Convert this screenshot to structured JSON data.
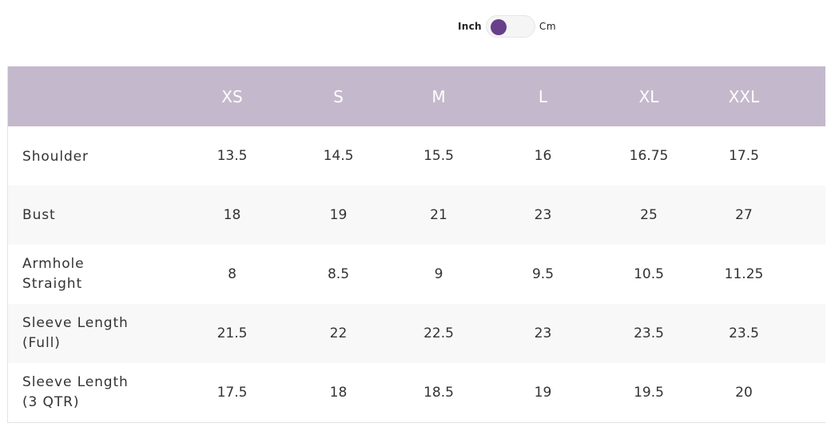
{
  "unit_toggle": {
    "left_label": "Inch",
    "right_label": "Cm",
    "selected": "Inch"
  },
  "table": {
    "header": [
      "",
      "XS",
      "S",
      "M",
      "L",
      "XL",
      "XXL"
    ],
    "rows": [
      {
        "label_lines": [
          "Shoulder"
        ],
        "values": [
          "13.5",
          "14.5",
          "15.5",
          "16",
          "16.75",
          "17.5"
        ]
      },
      {
        "label_lines": [
          "Bust"
        ],
        "values": [
          "18",
          "19",
          "21",
          "23",
          "25",
          "27"
        ]
      },
      {
        "label_lines": [
          "Armhole",
          "Straight"
        ],
        "values": [
          "8",
          "8.5",
          "9",
          "9.5",
          "10.5",
          "11.25"
        ]
      },
      {
        "label_lines": [
          "Sleeve Length",
          "(Full)"
        ],
        "values": [
          "21.5",
          "22",
          "22.5",
          "23",
          "23.5",
          "23.5"
        ]
      },
      {
        "label_lines": [
          "Sleeve Length",
          "(3 QTR)"
        ],
        "values": [
          "17.5",
          "18",
          "18.5",
          "19",
          "19.5",
          "20"
        ]
      }
    ]
  },
  "colors": {
    "accent": "#673f8a",
    "header_bg": "#c4b9cc",
    "stripe_bg": "#f8f8f8"
  }
}
